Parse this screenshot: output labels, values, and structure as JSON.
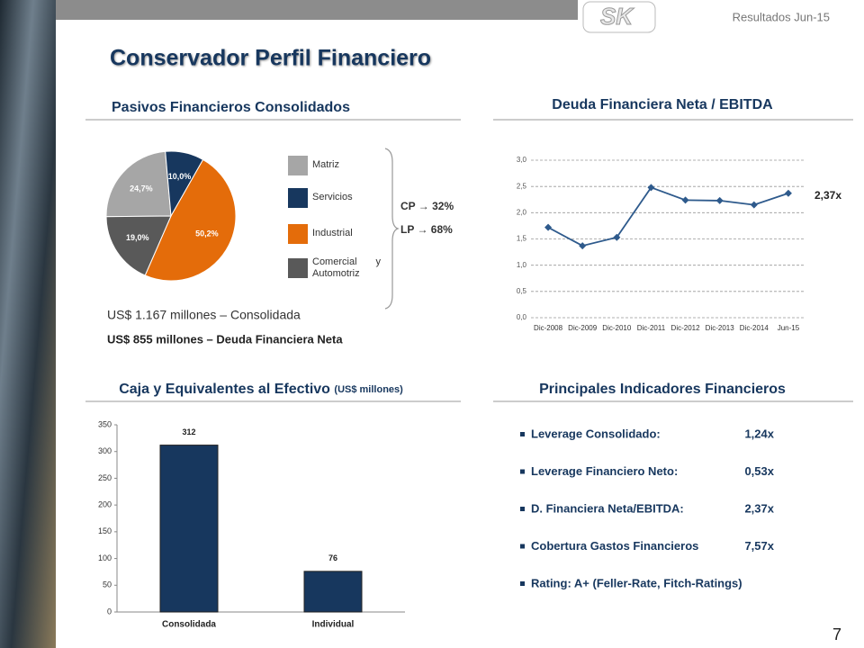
{
  "header": {
    "brand": "SK",
    "subtitle": "Resultados Jun-15",
    "title": "Conservador Perfil Financiero",
    "page_number": "7"
  },
  "pasivos": {
    "debt_total": "US$ 1.167 millones – Consolidada",
    "net_debt": "US$ 855 millones – Deuda Financiera Neta",
    "term_split": [
      "CP → 32%",
      "LP → 68%"
    ]
  },
  "indicators": {
    "title": "Principales Indicadores Financieros",
    "items": [
      {
        "label": "Leverage Consolidado:",
        "value": "1,24x"
      },
      {
        "label": "Leverage Financiero Neto:",
        "value": "0,53x"
      },
      {
        "label": "D. Financiera Neta/EBITDA:",
        "value": "2,37x"
      },
      {
        "label": "Cobertura Gastos Financieros",
        "value": "7,57x"
      },
      {
        "label": "Rating: A+ (Feller-Rate, Fitch-Ratings)",
        "value": null
      }
    ]
  },
  "chart_data": [
    {
      "type": "pie",
      "title": "Pasivos Financieros Consolidados",
      "categories": [
        "Matriz",
        "Servicios",
        "Industrial",
        "Comercial y Automotriz"
      ],
      "values": [
        24.7,
        10.0,
        50.2,
        19.0
      ],
      "value_labels": [
        "24,7%",
        "10,0%",
        "50,2%",
        "19,0%"
      ],
      "colors": [
        "#a6a6a6",
        "#17375e",
        "#e46c0a",
        "#595959"
      ]
    },
    {
      "type": "line",
      "title": "Deuda Financiera Neta / EBITDA",
      "categories": [
        "Dic-2008",
        "Dic-2009",
        "Dic-2010",
        "Dic-2011",
        "Dic-2012",
        "Dic-2013",
        "Dic-2014",
        "Jun-15"
      ],
      "values": [
        1.72,
        1.37,
        1.53,
        2.48,
        2.24,
        2.23,
        2.15,
        2.37
      ],
      "annotation": "2,37x",
      "color": "#2e5a8c",
      "ylim": [
        0,
        3
      ],
      "yticks": [
        {
          "value": 0,
          "label": "0,0"
        },
        {
          "value": 0.5,
          "label": "0,5"
        },
        {
          "value": 1,
          "label": "1,0"
        },
        {
          "value": 1.5,
          "label": "1,5"
        },
        {
          "value": 2,
          "label": "2,0"
        },
        {
          "value": 2.5,
          "label": "2,5"
        },
        {
          "value": 3,
          "label": "3,0"
        }
      ],
      "grid": true
    },
    {
      "type": "bar",
      "title": "Caja y Equivalentes al Efectivo",
      "subtitle": "(US$ millones)",
      "categories": [
        "Consolidada",
        "Individual"
      ],
      "values": [
        312,
        76
      ],
      "color": "#17375e",
      "ylim": [
        0,
        350
      ],
      "yticks": [
        0,
        50,
        100,
        150,
        200,
        250,
        300,
        350
      ],
      "grid": false
    }
  ]
}
